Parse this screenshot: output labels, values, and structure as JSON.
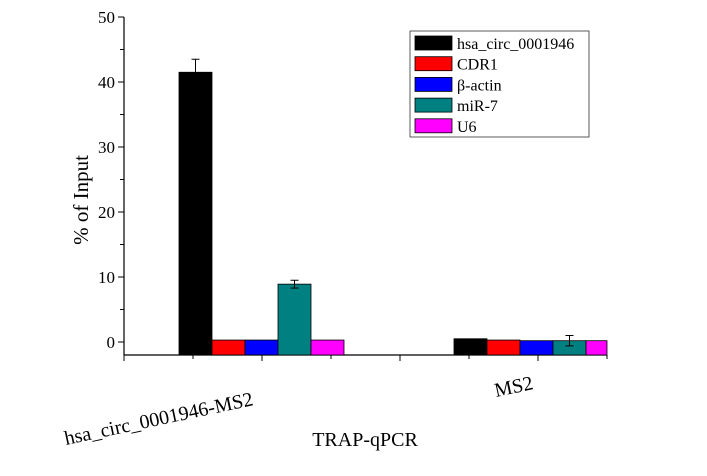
{
  "chart_data": {
    "type": "bar",
    "title": "",
    "xlabel": "TRAP-qPCR",
    "ylabel": "% of Input",
    "ylim": [
      -2,
      50
    ],
    "yticks": [
      0,
      10,
      20,
      30,
      40,
      50
    ],
    "grid": false,
    "legend_position": "top-right",
    "categories": [
      "hsa_circ_0001946-MS2",
      "MS2"
    ],
    "series": [
      {
        "name": "hsa_circ_0001946",
        "color": "#000000",
        "values": [
          41.5,
          0.5
        ],
        "errors": [
          2.0,
          0
        ]
      },
      {
        "name": "CDR1",
        "color": "#ff0000",
        "values": [
          0.3,
          0.3
        ],
        "errors": [
          0,
          0
        ]
      },
      {
        "name": "β-actin",
        "color": "#0000ff",
        "values": [
          0.3,
          0.2
        ],
        "errors": [
          0,
          0
        ]
      },
      {
        "name": "miR-7",
        "color": "#008080",
        "values": [
          8.9,
          0.2
        ],
        "errors": [
          0.6,
          0.8
        ]
      },
      {
        "name": "U6",
        "color": "#ff00ff",
        "values": [
          0.3,
          0.2
        ],
        "errors": [
          0,
          0
        ]
      }
    ]
  }
}
